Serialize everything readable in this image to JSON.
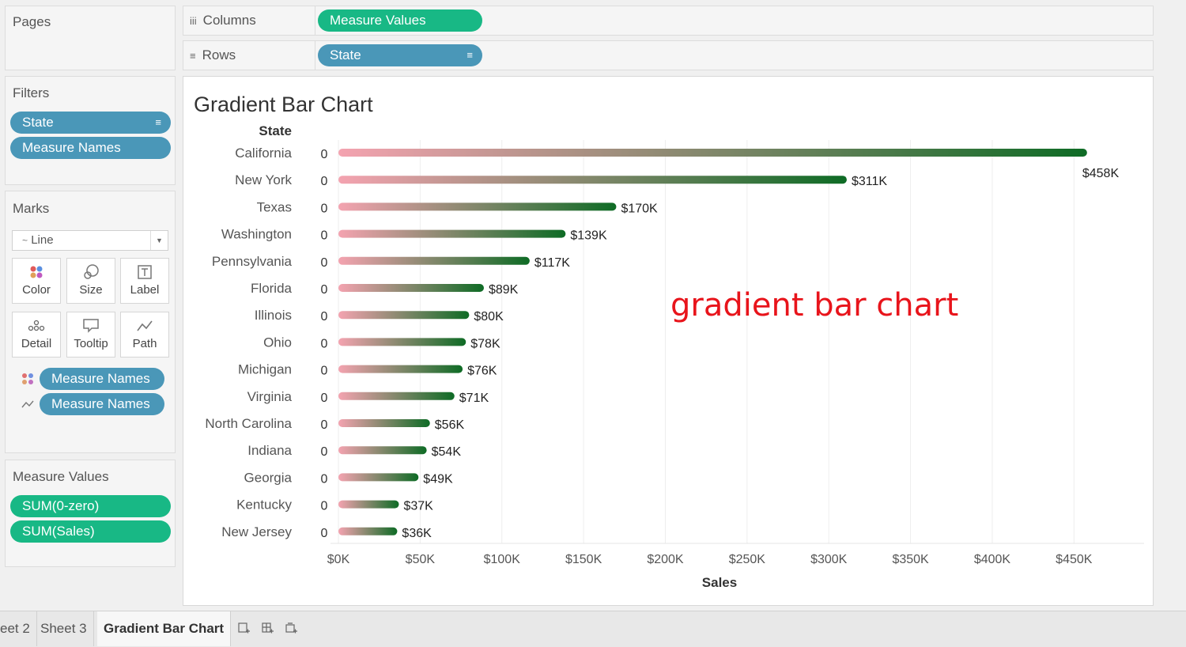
{
  "pages": {
    "title": "Pages"
  },
  "shelves": {
    "columns": {
      "label": "Columns",
      "icon": "columns-icon",
      "pill": "Measure Values"
    },
    "rows": {
      "label": "Rows",
      "icon": "rows-icon",
      "pill": "State"
    }
  },
  "filters": {
    "title": "Filters",
    "items": [
      "State",
      "Measure Names"
    ]
  },
  "marks": {
    "title": "Marks",
    "type": "Line",
    "buttons": [
      {
        "label": "Color",
        "icon": "color-icon"
      },
      {
        "label": "Size",
        "icon": "size-icon"
      },
      {
        "label": "Label",
        "icon": "label-icon"
      },
      {
        "label": "Detail",
        "icon": "detail-icon"
      },
      {
        "label": "Tooltip",
        "icon": "tooltip-icon"
      },
      {
        "label": "Path",
        "icon": "path-icon"
      }
    ],
    "fields": [
      {
        "icon": "color-dots-icon",
        "label": "Measure Names"
      },
      {
        "icon": "path-line-icon",
        "label": "Measure Names"
      }
    ]
  },
  "measure_values": {
    "title": "Measure Values",
    "items": [
      "SUM(0-zero)",
      "SUM(Sales)"
    ]
  },
  "tabs": {
    "items": [
      "eet 2",
      "Sheet 3",
      "Gradient Bar Chart"
    ],
    "active": "Gradient Bar Chart"
  },
  "annotation": {
    "text": "gradient bar chart",
    "color": "#e8141b"
  },
  "chart_data": {
    "type": "bar",
    "title": "Gradient Bar Chart",
    "row_header": "State",
    "xlabel": "Sales",
    "xlim": [
      0,
      475000
    ],
    "x_ticks": [
      0,
      50000,
      100000,
      150000,
      200000,
      250000,
      300000,
      350000,
      400000,
      450000
    ],
    "x_tick_labels": [
      "$0K",
      "$50K",
      "$100K",
      "$150K",
      "$200K",
      "$250K",
      "$300K",
      "$350K",
      "$400K",
      "$450K"
    ],
    "start_label": "0",
    "gradient_colors": [
      "#f4a3b0",
      "#0e6b25"
    ],
    "categories": [
      "California",
      "New York",
      "Texas",
      "Washington",
      "Pennsylvania",
      "Florida",
      "Illinois",
      "Ohio",
      "Michigan",
      "Virginia",
      "North Carolina",
      "Indiana",
      "Georgia",
      "Kentucky",
      "New Jersey"
    ],
    "values": [
      458000,
      311000,
      170000,
      139000,
      117000,
      89000,
      80000,
      78000,
      76000,
      71000,
      56000,
      54000,
      49000,
      37000,
      36000
    ],
    "value_labels": [
      "$458K",
      "$311K",
      "$170K",
      "$139K",
      "$117K",
      "$89K",
      "$80K",
      "$78K",
      "$76K",
      "$71K",
      "$56K",
      "$54K",
      "$49K",
      "$37K",
      "$36K"
    ],
    "grid": true
  }
}
